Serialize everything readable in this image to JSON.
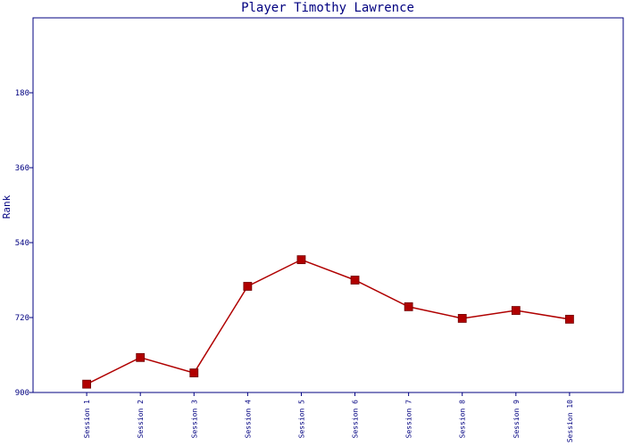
{
  "chart_data": {
    "type": "line",
    "title": "Player Timothy Lawrence",
    "y_label": "Rank",
    "categories": [
      "Session 1",
      "Session 2",
      "Session 3",
      "Session 4",
      "Session 5",
      "Session 6",
      "Session 7",
      "Session 8",
      "Session 9",
      "Session 10"
    ],
    "series": [
      {
        "name": "Rank",
        "color": "#b00000",
        "values": [
          880,
          816,
          853,
          645,
          581,
          630,
          694,
          722,
          703,
          724
        ]
      }
    ],
    "ylim": [
      0,
      900
    ],
    "y_inverted": true,
    "yticks": [
      180,
      360,
      540,
      720,
      900
    ]
  }
}
